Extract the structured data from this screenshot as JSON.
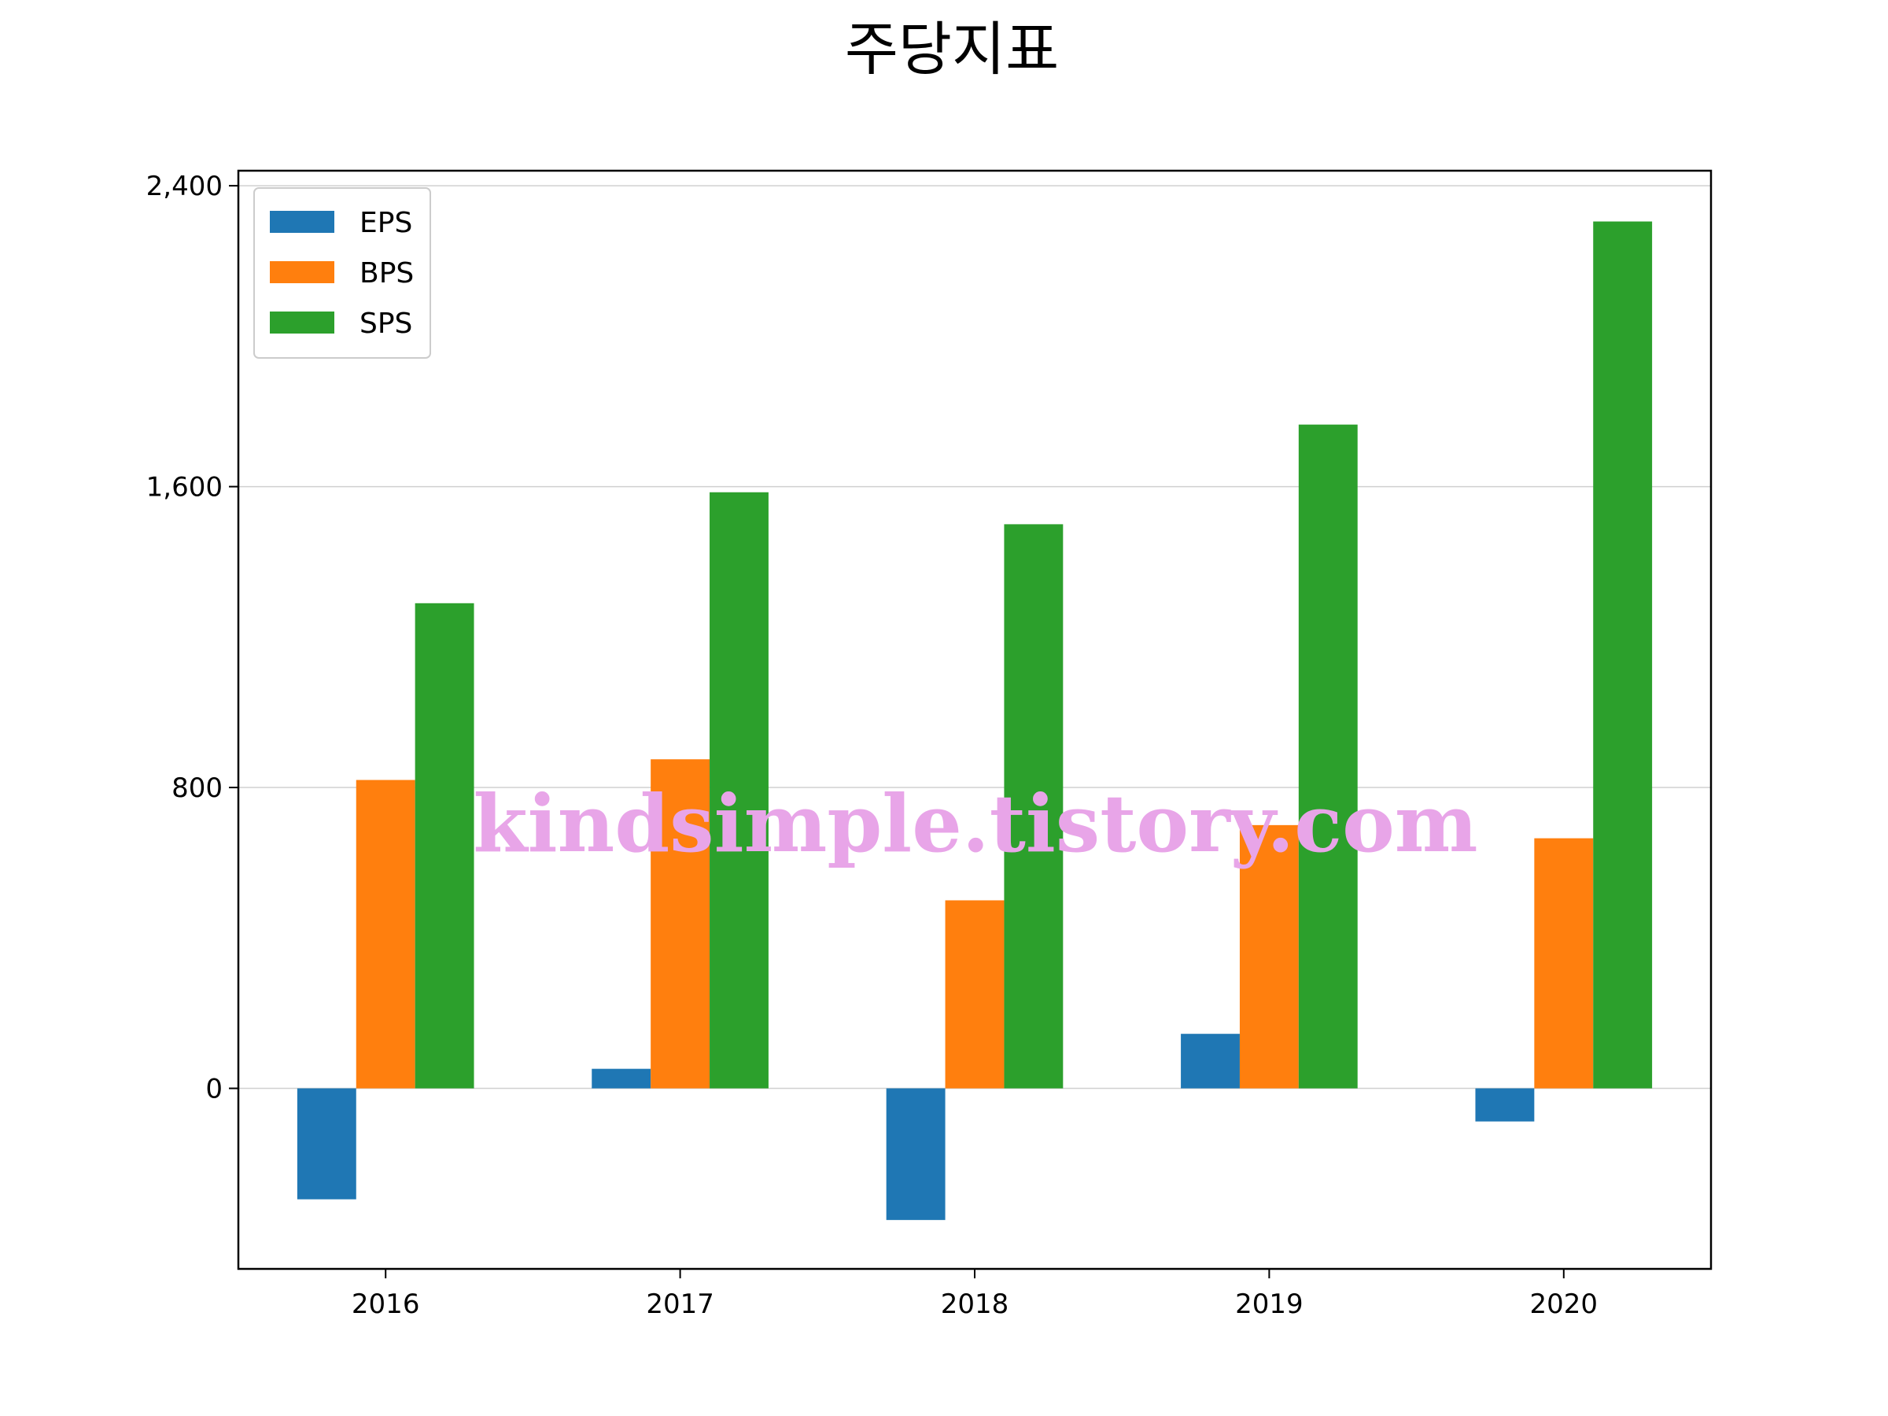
{
  "chart_data": {
    "type": "bar",
    "title": "주당지표",
    "xlabel": "",
    "ylabel": "",
    "categories": [
      "2016",
      "2017",
      "2018",
      "2019",
      "2020"
    ],
    "series": [
      {
        "name": "EPS",
        "color": "#1f77b4",
        "values": [
          -295,
          52,
          -350,
          145,
          -88
        ]
      },
      {
        "name": "BPS",
        "color": "#ff7f0e",
        "values": [
          820,
          875,
          500,
          700,
          665
        ]
      },
      {
        "name": "SPS",
        "color": "#2ca02c",
        "values": [
          1290,
          1585,
          1500,
          1765,
          2305
        ]
      }
    ],
    "ylim": [
      -480,
      2440
    ],
    "yticks": [
      0,
      800,
      1600,
      2400
    ],
    "ytick_labels": [
      "0",
      "800",
      "1,600",
      "2,400"
    ],
    "grid": "y",
    "legend": "top-left"
  },
  "watermark": "kindsimple.tistory.com"
}
